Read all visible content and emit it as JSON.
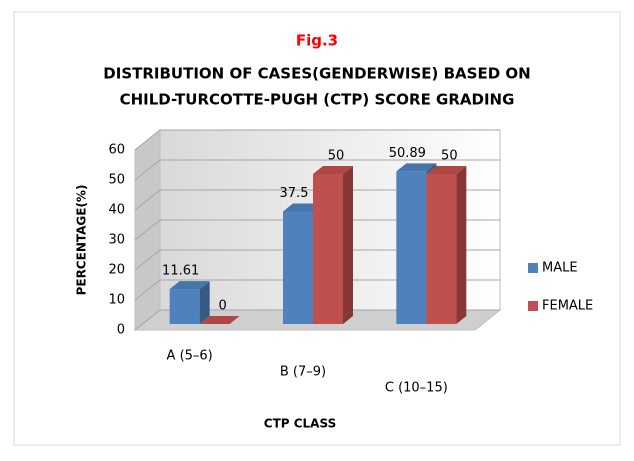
{
  "chart_data": {
    "type": "bar3d",
    "label": "Fig.3",
    "title": [
      "DISTRIBUTION OF CASES(GENDERWISE) BASED ON",
      "CHILD-TURCOTTE-PUGH (CTP) SCORE GRADING"
    ],
    "categories": [
      "A (5–6)",
      "B (7–9)",
      "C (10–15)"
    ],
    "series": [
      {
        "name": "MALE",
        "color": "#4f81bd",
        "values": [
          11.61,
          37.5,
          50.89
        ]
      },
      {
        "name": "FEMALE",
        "color": "#c0504d",
        "values": [
          0,
          50,
          50
        ]
      }
    ],
    "ylim": [
      0,
      60
    ],
    "yticks": [
      0,
      10,
      20,
      30,
      40,
      50,
      60
    ],
    "ylabel": "PERCENTAGE(%)",
    "xlabel": "CTP CLASS",
    "grid": true,
    "legend": "right"
  }
}
